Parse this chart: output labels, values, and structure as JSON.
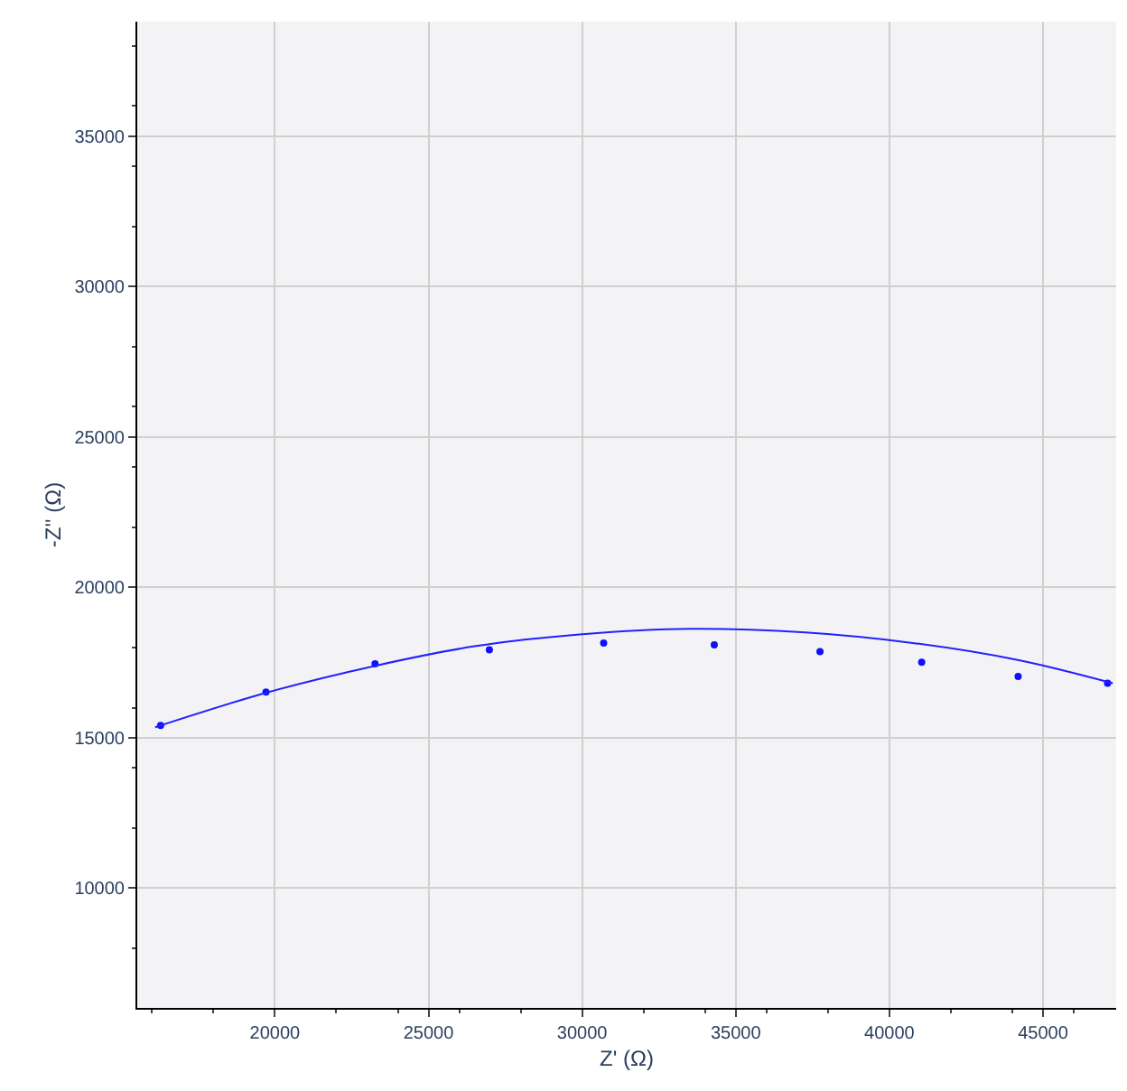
{
  "chart_data": {
    "type": "scatter",
    "xlabel": "Z' (Ω)",
    "ylabel": "-Z'' (Ω)",
    "xlim": [
      15520,
      47380
    ],
    "xticks": [
      20000,
      25000,
      30000,
      35000,
      40000,
      45000
    ],
    "ylim": [
      6020,
      38800
    ],
    "yticks": [
      10000,
      15000,
      20000,
      25000,
      30000,
      35000
    ],
    "grid": true,
    "series": [
      {
        "marker": "circle",
        "color": "#1010ff",
        "x": [
          16280,
          19710,
          23260,
          26980,
          30700,
          34300,
          37740,
          41050,
          44190,
          47100
        ],
        "values": [
          15410,
          16520,
          17460,
          17920,
          18150,
          18090,
          17860,
          17510,
          17040,
          16810
        ]
      },
      {
        "type": "line",
        "marker": "none",
        "color": "#2020ff",
        "x": [
          16100,
          19800,
          23300,
          26500,
          30000,
          33490,
          37270,
          40760,
          44250,
          47270
        ],
        "values": [
          15350,
          16520,
          17400,
          18040,
          18440,
          18620,
          18500,
          18150,
          17570,
          16810
        ]
      }
    ]
  }
}
